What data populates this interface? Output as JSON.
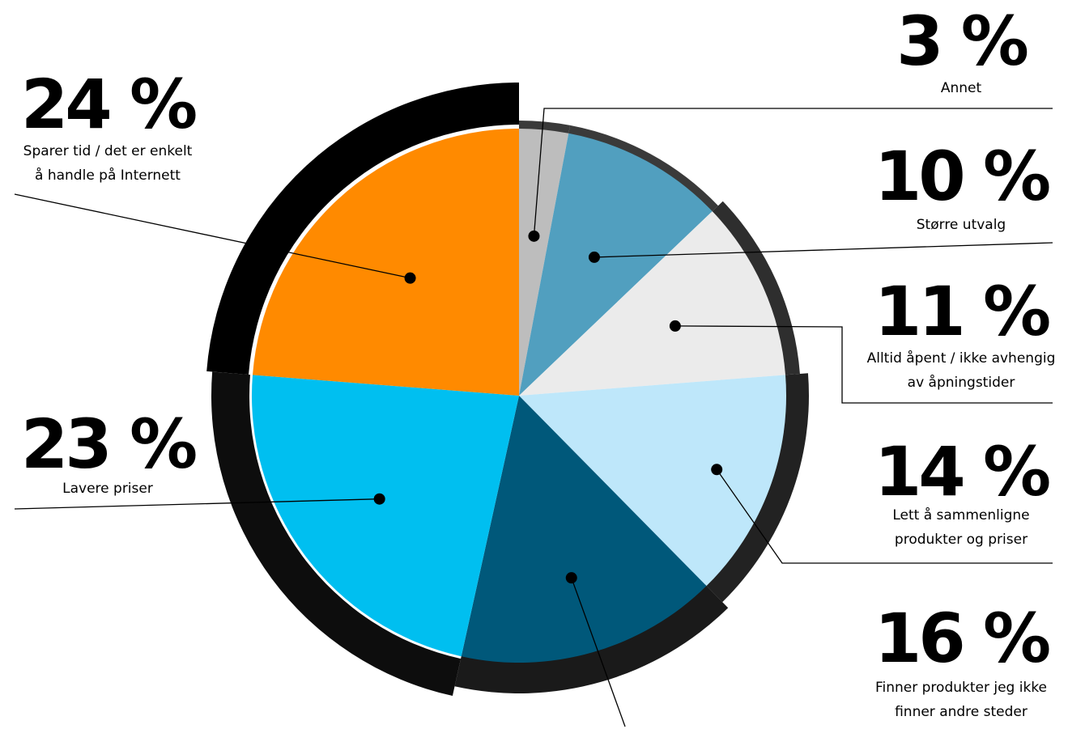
{
  "chart_data": {
    "type": "pie",
    "unit": "%",
    "slices": [
      {
        "value": 3,
        "percent_label": "3 %",
        "lines": [
          "Annet"
        ],
        "color": "#BDBDBD",
        "ring_color": "#3A3A3A"
      },
      {
        "value": 10,
        "percent_label": "10 %",
        "lines": [
          "Større utvalg"
        ],
        "color": "#519FBF",
        "ring_color": "#3A3A3A"
      },
      {
        "value": 11,
        "percent_label": "11 %",
        "lines": [
          "Alltid åpent / ikke avhengig",
          "av åpningstider"
        ],
        "color": "#EBEBEB",
        "ring_color": "#2E2E2E"
      },
      {
        "value": 14,
        "percent_label": "14 %",
        "lines": [
          "Lett å sammenligne",
          "produkter og priser"
        ],
        "color": "#BEE7FA",
        "ring_color": "#222222"
      },
      {
        "value": 16,
        "percent_label": "16 %",
        "lines": [
          "Finner produkter jeg ikke",
          "finner andre steder"
        ],
        "color": "#00587A",
        "ring_color": "#1A1A1A"
      },
      {
        "value": 23,
        "percent_label": "23 %",
        "lines": [
          "Lavere priser"
        ],
        "color": "#00BFF0",
        "ring_color": "#0D0D0D"
      },
      {
        "value": 24,
        "percent_label": "24 %",
        "lines": [
          "Sparer tid / det er enkelt",
          "å handle på Internett"
        ],
        "color": "#FF8A00",
        "ring_color": "#000000"
      }
    ]
  }
}
